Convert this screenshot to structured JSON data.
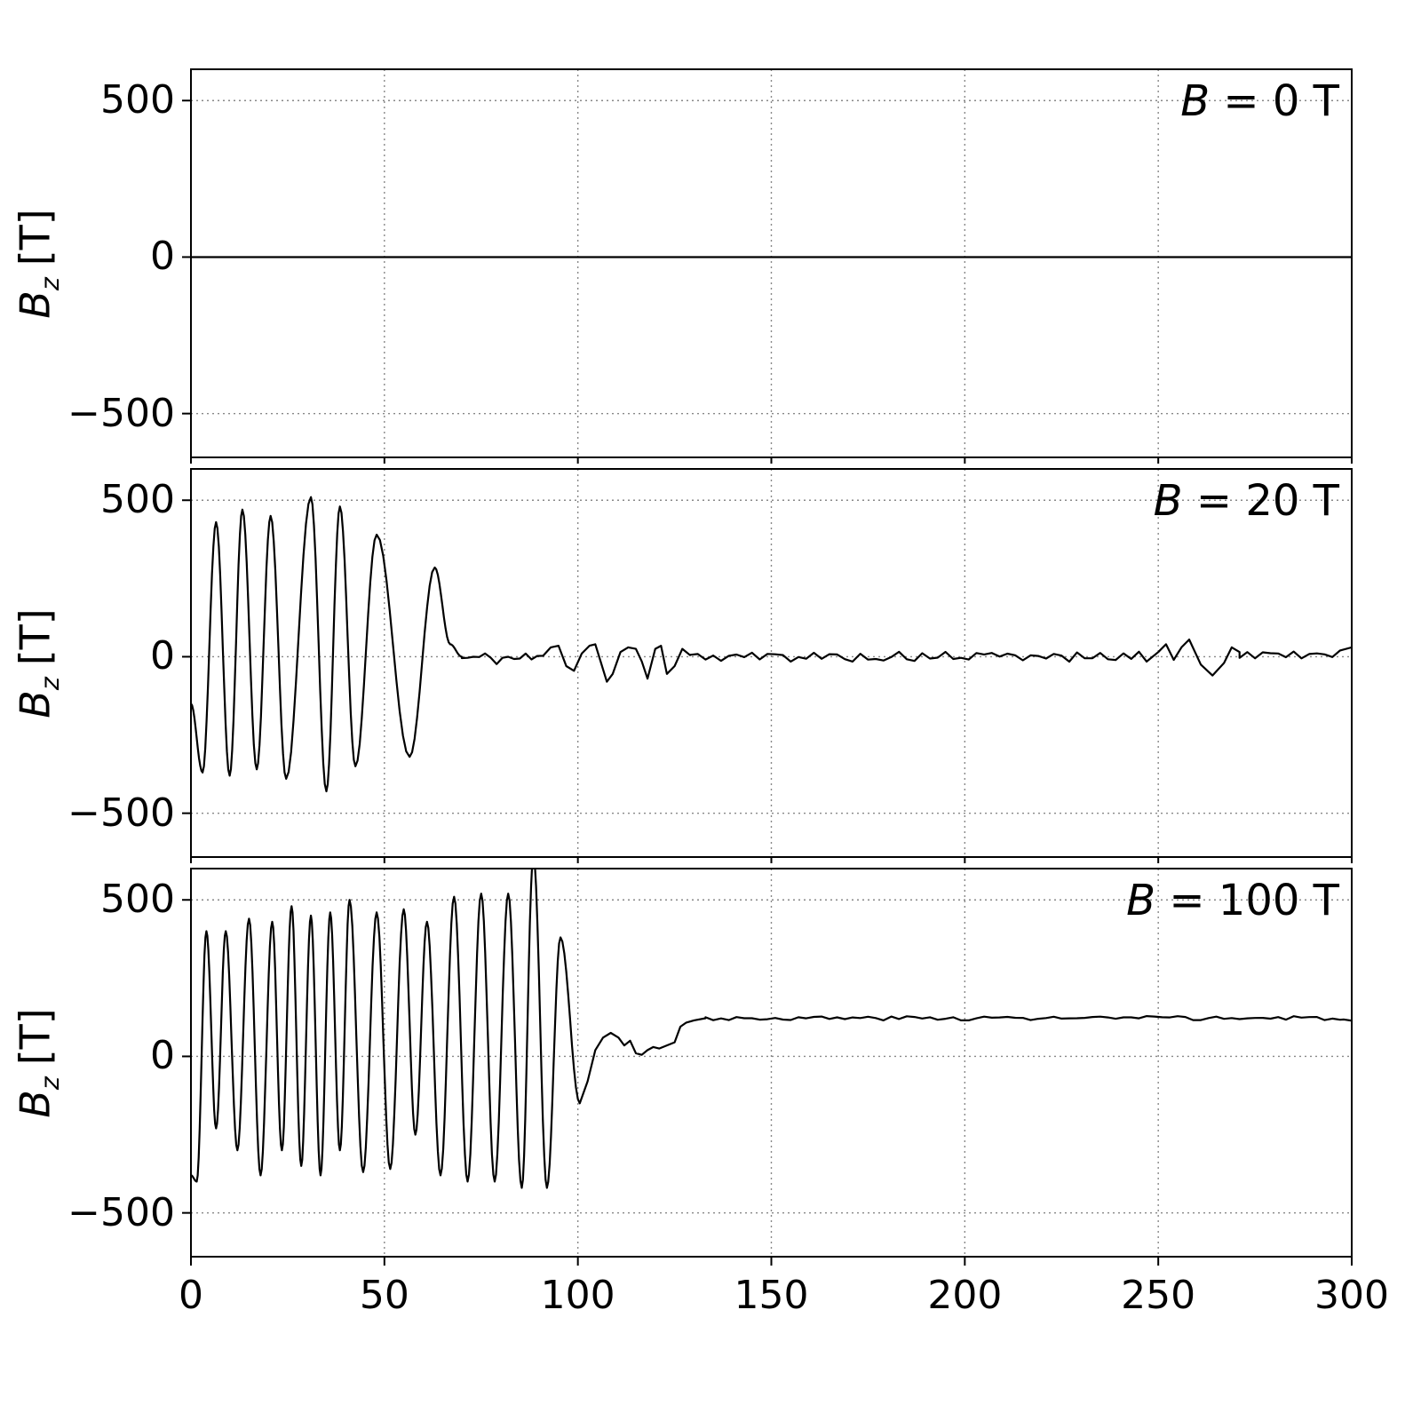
{
  "chart_data": {
    "type": "line",
    "title": "",
    "xlabel": "",
    "xlim": [
      0,
      300
    ],
    "ylim": [
      -640,
      600
    ],
    "x_ticks": [
      0,
      50,
      100,
      150,
      200,
      250,
      300
    ],
    "x_tick_labels": [
      "0",
      "50",
      "100",
      "150",
      "200",
      "250",
      "300"
    ],
    "y_ticks": [
      500,
      0,
      -500
    ],
    "y_tick_labels": [
      "500",
      "0",
      "−500"
    ],
    "grid": "dotted",
    "line_color": "#000000",
    "grid_color": "#888888",
    "ylabel": {
      "symbol": "B",
      "sub": "z",
      "unit": "[T]"
    },
    "panels": [
      {
        "label": {
          "symbol": "B",
          "rest": " = 0 T"
        },
        "segments": [
          {
            "type": "points",
            "smooth": false,
            "pts": [
              [
                0,
                0
              ],
              [
                300,
                0
              ]
            ]
          }
        ]
      },
      {
        "label": {
          "symbol": "B",
          "rest": " = 20 T"
        },
        "segments": [
          {
            "type": "points",
            "smooth": true,
            "pts": [
              [
                0,
                -150
              ],
              [
                3,
                -370
              ],
              [
                6.5,
                430
              ],
              [
                10,
                -380
              ],
              [
                13.3,
                470
              ],
              [
                17,
                -360
              ],
              [
                20.6,
                450
              ],
              [
                24.6,
                -390
              ],
              [
                31,
                510
              ],
              [
                35,
                -430
              ],
              [
                38.5,
                480
              ],
              [
                42.5,
                -350
              ],
              [
                48,
                390
              ],
              [
                56.5,
                -320
              ],
              [
                63,
                285
              ],
              [
                67,
                40
              ],
              [
                70,
                0
              ]
            ]
          },
          {
            "type": "noise",
            "x0": 70,
            "x1": 92,
            "step": 1.5,
            "baseline": -5,
            "amplitude": 22,
            "seed": 11
          },
          {
            "type": "points",
            "smooth": false,
            "pts": [
              [
                93,
                30
              ],
              [
                95,
                35
              ],
              [
                97,
                -30
              ],
              [
                99,
                -45
              ],
              [
                101,
                10
              ],
              [
                103,
                35
              ],
              [
                104.5,
                40
              ],
              [
                106,
                -20
              ],
              [
                107.5,
                -80
              ],
              [
                109,
                -55
              ],
              [
                111,
                15
              ],
              [
                113,
                30
              ],
              [
                115,
                25
              ],
              [
                116.5,
                -15
              ],
              [
                118,
                -70
              ],
              [
                120,
                25
              ],
              [
                121.5,
                35
              ],
              [
                123,
                -55
              ],
              [
                125,
                -30
              ],
              [
                127,
                25
              ],
              [
                129,
                5
              ]
            ]
          },
          {
            "type": "noise",
            "x0": 129,
            "x1": 248,
            "step": 2,
            "baseline": 0,
            "amplitude": 16,
            "seed": 5
          },
          {
            "type": "points",
            "smooth": false,
            "pts": [
              [
                250,
                15
              ],
              [
                252,
                40
              ],
              [
                254,
                -10
              ],
              [
                256,
                30
              ],
              [
                258,
                55
              ],
              [
                261,
                -25
              ],
              [
                264,
                -60
              ],
              [
                267,
                -20
              ],
              [
                269,
                30
              ],
              [
                271,
                15
              ]
            ]
          },
          {
            "type": "noise",
            "x0": 271,
            "x1": 296,
            "step": 2,
            "baseline": 5,
            "amplitude": 14,
            "seed": 9
          },
          {
            "type": "points",
            "smooth": false,
            "pts": [
              [
                297,
                20
              ],
              [
                300,
                30
              ]
            ]
          }
        ]
      },
      {
        "label": {
          "symbol": "B",
          "rest": " = 100 T"
        },
        "segments": [
          {
            "type": "points",
            "smooth": true,
            "pts": [
              [
                0,
                -380
              ],
              [
                1.5,
                -400
              ],
              [
                4,
                400
              ],
              [
                6.5,
                -230
              ],
              [
                9,
                400
              ],
              [
                12,
                -300
              ],
              [
                15,
                440
              ],
              [
                18,
                -380
              ],
              [
                21,
                430
              ],
              [
                23.5,
                -300
              ],
              [
                26,
                480
              ],
              [
                28.5,
                -350
              ],
              [
                31,
                450
              ],
              [
                33.5,
                -380
              ],
              [
                36,
                460
              ],
              [
                38.5,
                -300
              ],
              [
                41,
                500
              ],
              [
                44.5,
                -370
              ],
              [
                48,
                460
              ],
              [
                51.5,
                -360
              ],
              [
                55,
                470
              ],
              [
                58,
                -250
              ],
              [
                61,
                430
              ],
              [
                64.5,
                -380
              ],
              [
                68,
                510
              ],
              [
                71.5,
                -400
              ],
              [
                75,
                520
              ],
              [
                78.5,
                -400
              ],
              [
                82,
                520
              ],
              [
                85.5,
                -420
              ],
              [
                88.5,
                645
              ],
              [
                92,
                -420
              ],
              [
                95.5,
                380
              ],
              [
                100.5,
                -150
              ]
            ]
          },
          {
            "type": "points",
            "smooth": false,
            "pts": [
              [
                102.5,
                -80
              ],
              [
                104.5,
                20
              ],
              [
                106.5,
                60
              ],
              [
                108.5,
                75
              ],
              [
                110.5,
                60
              ],
              [
                112,
                35
              ],
              [
                113.5,
                50
              ],
              [
                115,
                10
              ],
              [
                116.5,
                5
              ],
              [
                118,
                20
              ],
              [
                119.5,
                30
              ],
              [
                121,
                25
              ],
              [
                123,
                35
              ],
              [
                125,
                45
              ],
              [
                126.5,
                95
              ],
              [
                128,
                108
              ],
              [
                130,
                115
              ],
              [
                133,
                122
              ]
            ]
          },
          {
            "type": "noise",
            "x0": 133,
            "x1": 297,
            "step": 2,
            "baseline": 122,
            "amplitude": 7,
            "seed": 3
          },
          {
            "type": "points",
            "smooth": false,
            "pts": [
              [
                298,
                118
              ],
              [
                300,
                114
              ]
            ]
          }
        ]
      }
    ]
  }
}
